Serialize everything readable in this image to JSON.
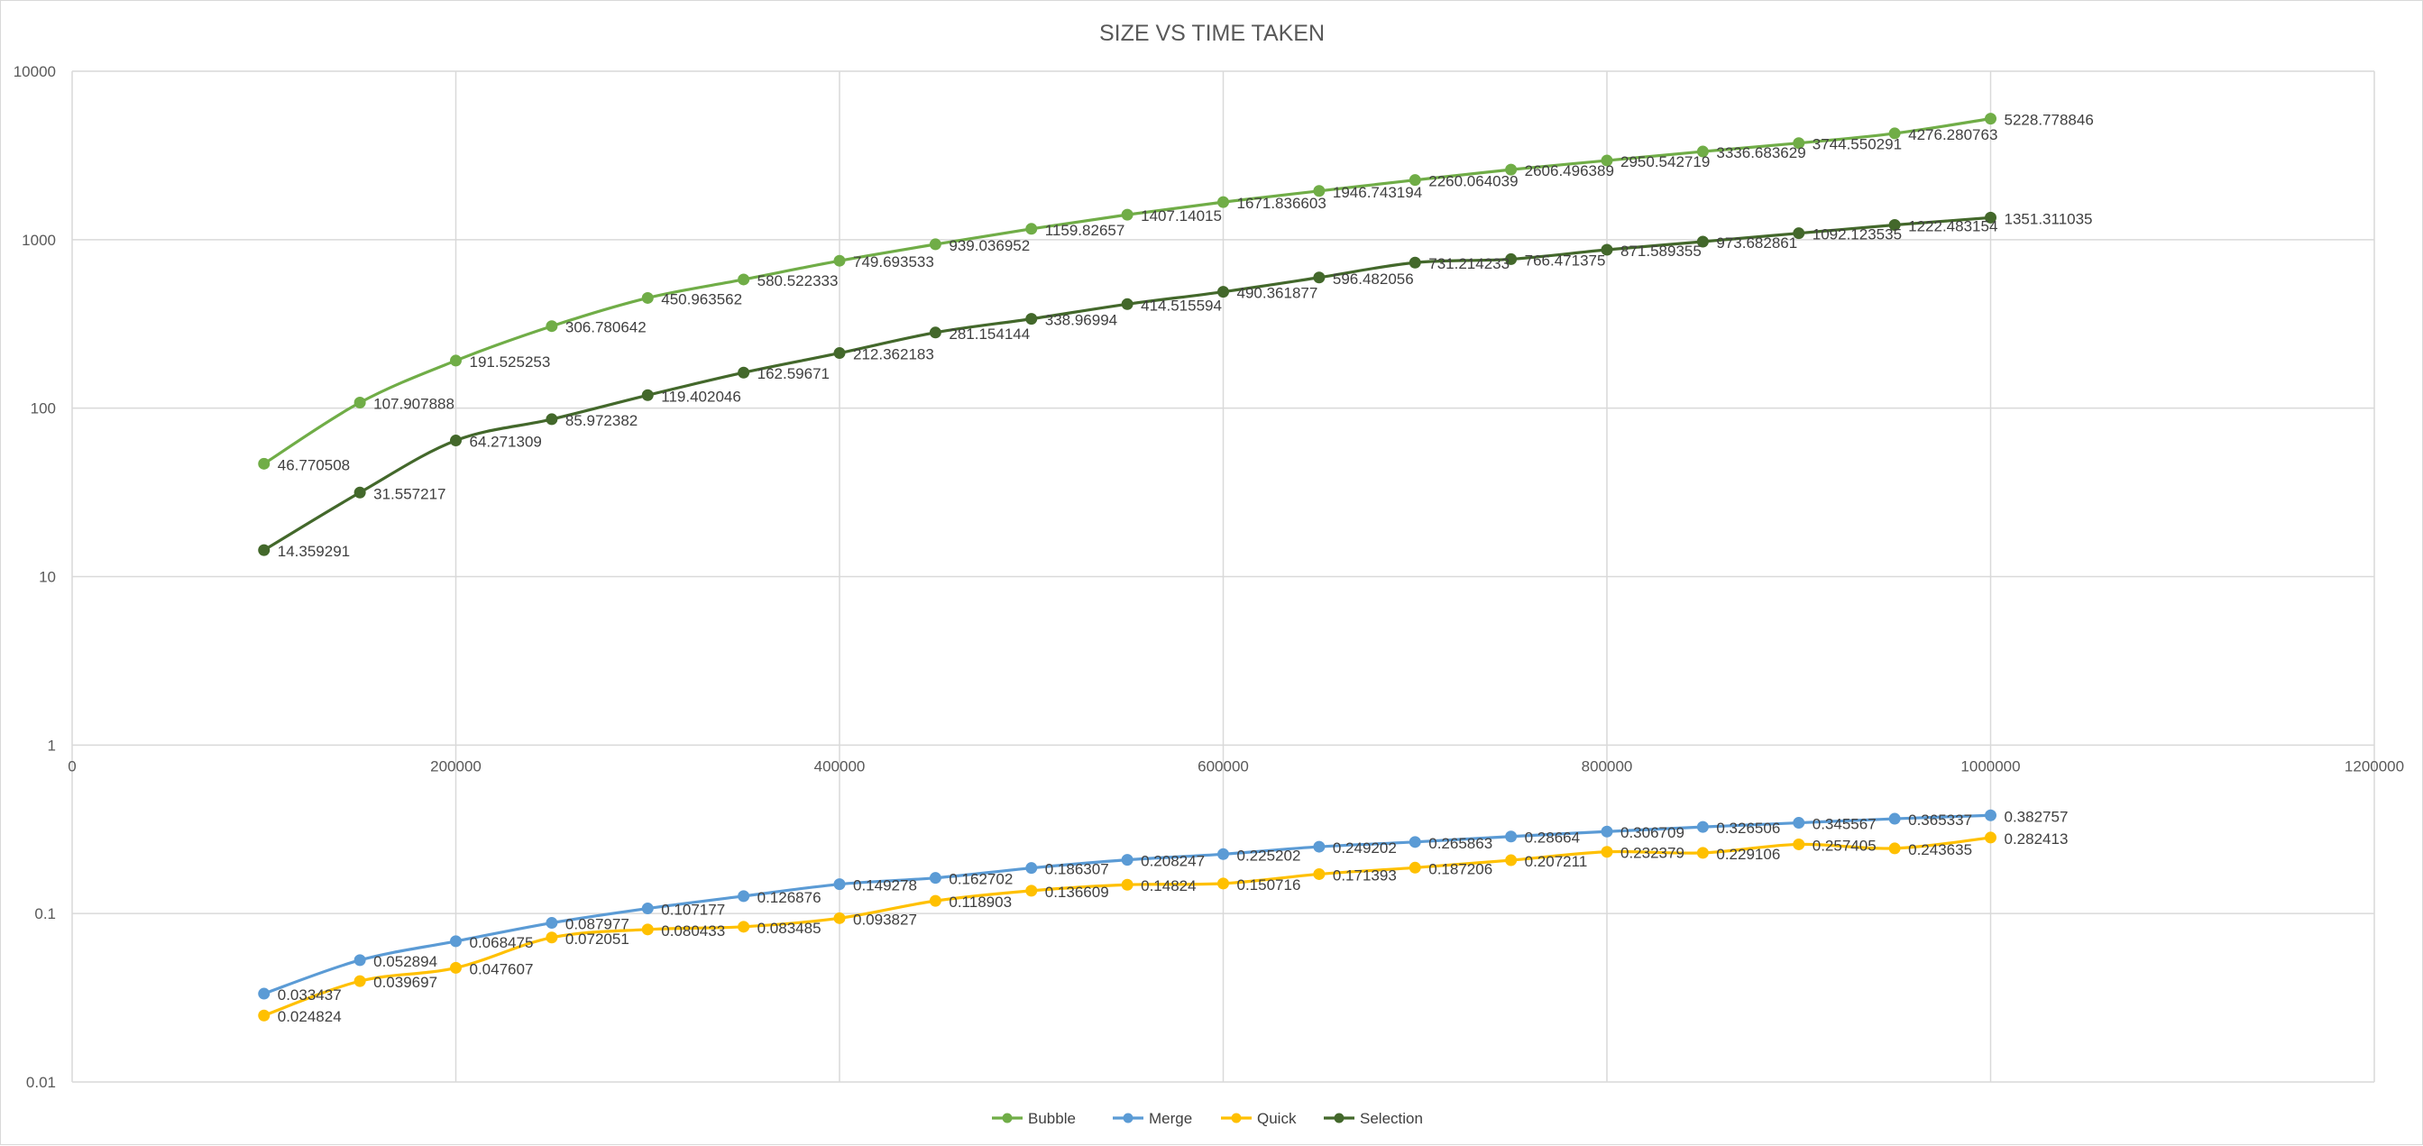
{
  "chart_data": {
    "type": "line",
    "title": "SIZE VS TIME TAKEN",
    "xlabel": "",
    "ylabel": "",
    "y_scale": "log",
    "xlim": [
      0,
      1200000
    ],
    "ylim": [
      0.01,
      10000
    ],
    "x_ticks": [
      "0",
      "200000",
      "400000",
      "600000",
      "800000",
      "1000000",
      "1200000"
    ],
    "y_ticks": [
      "10000",
      "1000",
      "100",
      "10",
      "1",
      "0.1",
      "0.01"
    ],
    "grid": true,
    "smoothed": true,
    "data_labels": true,
    "legend_position": "bottom",
    "x": [
      100000,
      150000,
      200000,
      250000,
      300000,
      350000,
      400000,
      450000,
      500000,
      550000,
      600000,
      650000,
      700000,
      750000,
      800000,
      850000,
      900000,
      950000,
      1000000
    ],
    "series": [
      {
        "name": "Bubble",
        "color": "#70ad47",
        "values": [
          46.770508,
          107.907888,
          191.525253,
          306.780642,
          450.963562,
          580.522333,
          749.693533,
          939.036952,
          1159.82657,
          1407.14015,
          1671.836603,
          1946.743194,
          2260.064039,
          2606.496389,
          2950.542719,
          3336.683629,
          3744.550291,
          4276.280763,
          5228.778846
        ]
      },
      {
        "name": "Merge",
        "color": "#5b9bd5",
        "values": [
          0.033437,
          0.052894,
          0.068475,
          0.087977,
          0.107177,
          0.126876,
          0.149278,
          0.162702,
          0.186307,
          0.208247,
          0.225202,
          0.249202,
          0.265863,
          0.28664,
          0.306709,
          0.326506,
          0.345567,
          0.365337,
          0.382757
        ]
      },
      {
        "name": "Quick",
        "color": "#ffc000",
        "values": [
          0.024824,
          0.039697,
          0.047607,
          0.072051,
          0.080433,
          0.083485,
          0.093827,
          0.118903,
          0.136609,
          0.14824,
          0.150716,
          0.171393,
          0.187206,
          0.207211,
          0.232379,
          0.229106,
          0.257405,
          0.243635,
          0.282413
        ]
      },
      {
        "name": "Selection",
        "color": "#43682b",
        "values": [
          14.359291,
          31.557217,
          64.271309,
          85.972382,
          119.402046,
          162.59671,
          212.362183,
          281.154144,
          338.96994,
          414.515594,
          490.361877,
          596.482056,
          731.214233,
          766.471375,
          871.589355,
          973.682861,
          1092.123535,
          1222.483154,
          1351.311035
        ]
      }
    ]
  }
}
